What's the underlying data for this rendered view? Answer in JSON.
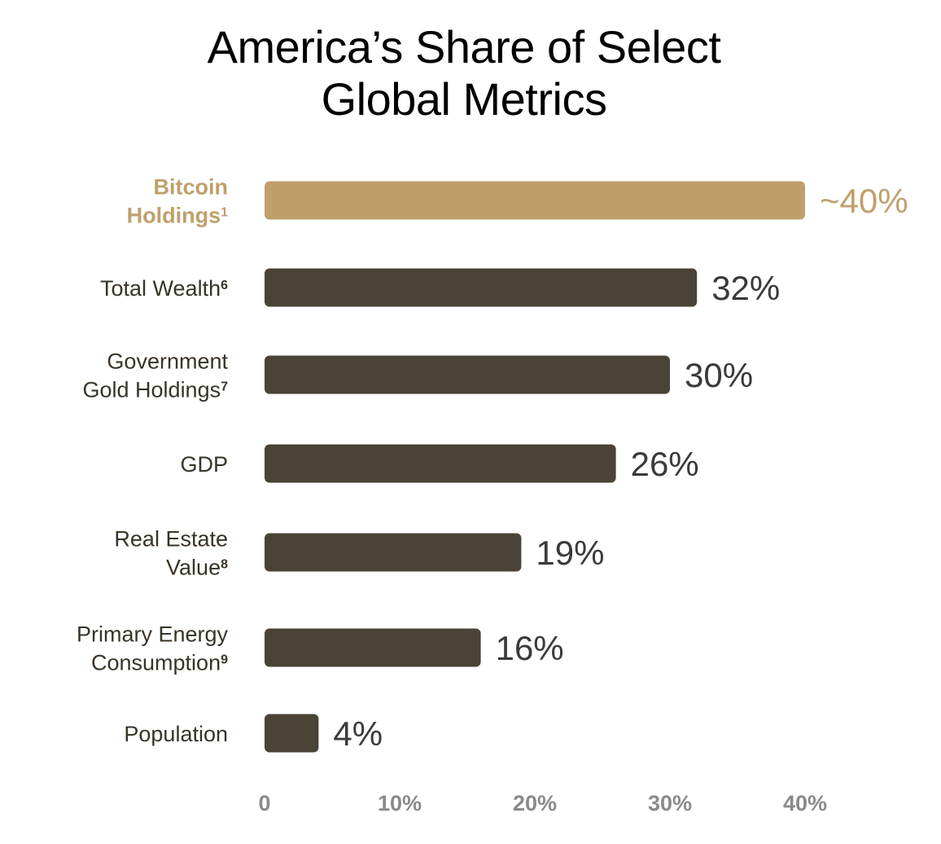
{
  "chart_data": {
    "type": "bar",
    "orientation": "horizontal",
    "title": "America’s Share of Select Global Metrics",
    "title_lines": [
      "America’s Share of Select",
      "Global Metrics"
    ],
    "xlabel": "",
    "ylabel": "",
    "categories": [
      {
        "label_lines": [
          "Bitcoin",
          "Holdings"
        ],
        "footnote": "1"
      },
      {
        "label_lines": [
          "Total Wealth"
        ],
        "footnote": "6"
      },
      {
        "label_lines": [
          "Government",
          "Gold Holdings"
        ],
        "footnote": "7"
      },
      {
        "label_lines": [
          "GDP"
        ],
        "footnote": ""
      },
      {
        "label_lines": [
          "Real Estate",
          "Value"
        ],
        "footnote": "8"
      },
      {
        "label_lines": [
          "Primary Energy",
          "Consumption"
        ],
        "footnote": "9"
      },
      {
        "label_lines": [
          "Population"
        ],
        "footnote": ""
      }
    ],
    "values": [
      40,
      32,
      30,
      26,
      19,
      16,
      4
    ],
    "value_labels": [
      "~40%",
      "32%",
      "30%",
      "26%",
      "19%",
      "16%",
      "4%"
    ],
    "highlight_index": 0,
    "xlim": [
      0,
      40
    ],
    "x_ticks": [
      0,
      10,
      20,
      30,
      40
    ],
    "x_tick_labels": [
      "0",
      "10%",
      "20%",
      "30%",
      "40%"
    ],
    "grid": false,
    "legend": "none",
    "colors": {
      "highlight": "#bfa06c",
      "bar": "#4a4336",
      "category_text": "#3a3328",
      "value_text": "#3a3a3a",
      "tick_text": "#8a8a8a",
      "title": "#000000"
    }
  }
}
